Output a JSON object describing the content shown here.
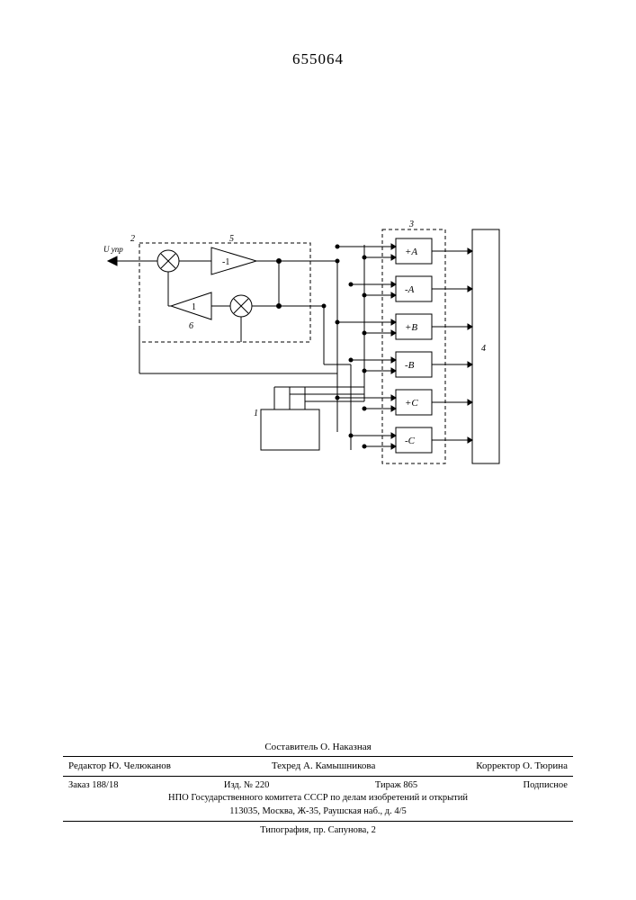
{
  "doc_number": "655064",
  "diagram": {
    "type": "flowchart",
    "stroke": "#000000",
    "stroke_width": 1,
    "font_size": 10,
    "input_label": "U упр",
    "block2_label": "2",
    "block5_label": "5",
    "block6_label": "6",
    "block1_label": "1",
    "block3_label": "3",
    "block4_label": "4",
    "amp5_label": "-1",
    "amp6_label": "1",
    "channels": [
      "+A",
      "-A",
      "+B",
      "-B",
      "+C",
      "-C"
    ]
  },
  "footer": {
    "compiler": "Составитель О. Наказная",
    "editor": "Редактор Ю. Челюканов",
    "techred": "Техред А. Камышникова",
    "corrector": "Корректор О. Тюрина",
    "order": "Заказ 188/18",
    "izd": "Изд. № 220",
    "tirazh": "Тираж 865",
    "sub": "Подписное",
    "org1": "НПО Государственного комитета СССР по делам изобретений и открытий",
    "org2": "113035, Москва, Ж-35, Раушская наб., д. 4/5",
    "printer": "Типография, пр. Сапунова, 2"
  }
}
